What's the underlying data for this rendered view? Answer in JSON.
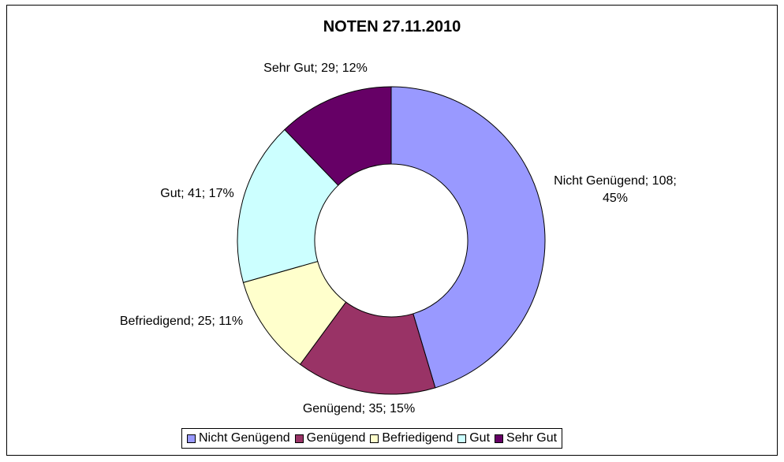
{
  "chart_data": {
    "type": "pie",
    "title": "NOTEN 27.11.2010",
    "categories": [
      "Nicht Genügend",
      "Genügend",
      "Befriedigend",
      "Gut",
      "Sehr Gut"
    ],
    "values": [
      108,
      35,
      25,
      41,
      29
    ],
    "percents": [
      "45%",
      "15%",
      "11%",
      "17%",
      "12%"
    ],
    "colors": [
      "#9999ff",
      "#993366",
      "#ffffcc",
      "#ccffff",
      "#660066"
    ],
    "data_labels": [
      "Nicht Genügend; 108; 45%",
      "Genügend; 35; 15%",
      "Befriedigend; 25; 11%",
      "Gut; 41; 17%",
      "Sehr Gut; 29; 12%"
    ],
    "legend_position": "bottom",
    "style": "doughnut"
  }
}
